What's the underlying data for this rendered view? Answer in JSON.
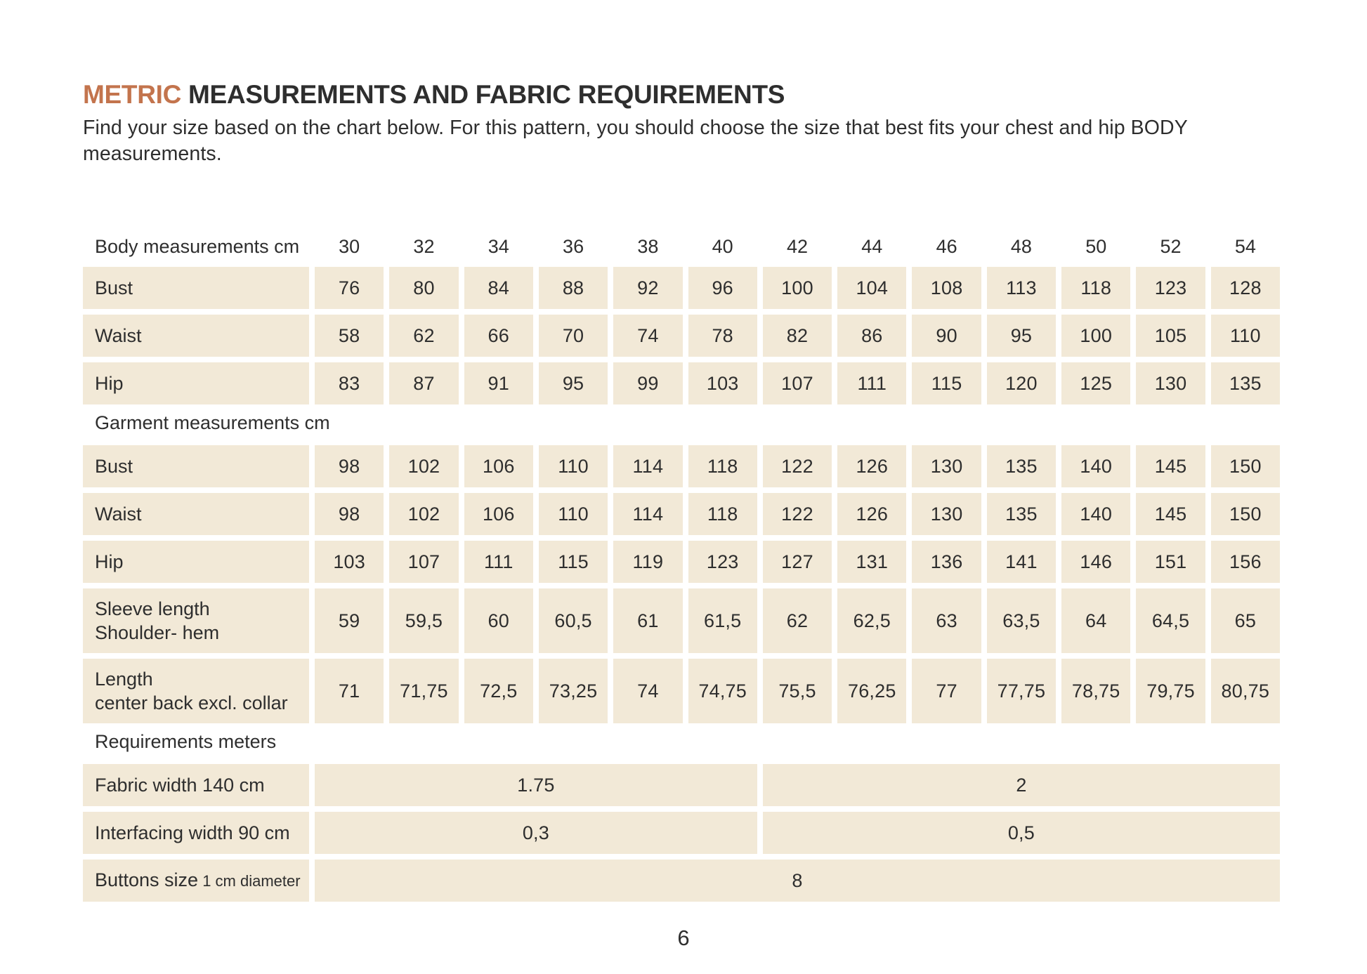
{
  "colors": {
    "accent": "#C3744D",
    "cell_bg": "#F2E9D7",
    "text": "#2E2E2E"
  },
  "page": {
    "title_highlight": "METRIC",
    "title_rest": " MEASUREMENTS AND FABRIC REQUIREMENTS",
    "subtitle_lines": [
      "Find your size based on the chart below. For this pattern, you should choose the size that best fits your chest and hip BODY",
      "measurements."
    ],
    "page_number": "6"
  },
  "size_chart": {
    "sizes": [
      "30",
      "32",
      "34",
      "36",
      "38",
      "40",
      "42",
      "44",
      "46",
      "48",
      "50",
      "52",
      "54"
    ],
    "sections": [
      {
        "label": "Body measurements cm",
        "rows": [
          {
            "label": "Bust",
            "values": [
              "76",
              "80",
              "84",
              "88",
              "92",
              "96",
              "100",
              "104",
              "108",
              "113",
              "118",
              "123",
              "128"
            ]
          },
          {
            "label": "Waist",
            "values": [
              "58",
              "62",
              "66",
              "70",
              "74",
              "78",
              "82",
              "86",
              "90",
              "95",
              "100",
              "105",
              "110"
            ]
          },
          {
            "label": "Hip",
            "values": [
              "83",
              "87",
              "91",
              "95",
              "99",
              "103",
              "107",
              "111",
              "115",
              "120",
              "125",
              "130",
              "135"
            ]
          }
        ]
      },
      {
        "label": "Garment measurements cm",
        "rows": [
          {
            "label": "Bust",
            "values": [
              "98",
              "102",
              "106",
              "110",
              "114",
              "118",
              "122",
              "126",
              "130",
              "135",
              "140",
              "145",
              "150"
            ]
          },
          {
            "label": "Waist",
            "values": [
              "98",
              "102",
              "106",
              "110",
              "114",
              "118",
              "122",
              "126",
              "130",
              "135",
              "140",
              "145",
              "150"
            ]
          },
          {
            "label": "Hip",
            "values": [
              "103",
              "107",
              "111",
              "115",
              "119",
              "123",
              "127",
              "131",
              "136",
              "141",
              "146",
              "151",
              "156"
            ]
          },
          {
            "label": "Sleeve length",
            "label2": "Shoulder- hem",
            "values": [
              "59",
              "59,5",
              "60",
              "60,5",
              "61",
              "61,5",
              "62",
              "62,5",
              "63",
              "63,5",
              "64",
              "64,5",
              "65"
            ]
          },
          {
            "label": "Length",
            "label2": "center back excl. collar",
            "values": [
              "71",
              "71,75",
              "72,5",
              "73,25",
              "74",
              "74,75",
              "75,5",
              "76,25",
              "77",
              "77,75",
              "78,75",
              "79,75",
              "80,75"
            ]
          }
        ]
      },
      {
        "label": "Requirements meters",
        "rows": [
          {
            "label": "Fabric width 140 cm",
            "spans": [
              {
                "value": "1.75",
                "cols": 6
              },
              {
                "value": "2",
                "cols": 7
              }
            ]
          },
          {
            "label": "Interfacing width 90 cm",
            "spans": [
              {
                "value": "0,3",
                "cols": 6
              },
              {
                "value": "0,5",
                "cols": 7
              }
            ]
          },
          {
            "label": "Buttons size",
            "label_small": "1 cm diameter",
            "spans": [
              {
                "value": "8",
                "cols": 13
              }
            ]
          }
        ]
      }
    ]
  }
}
